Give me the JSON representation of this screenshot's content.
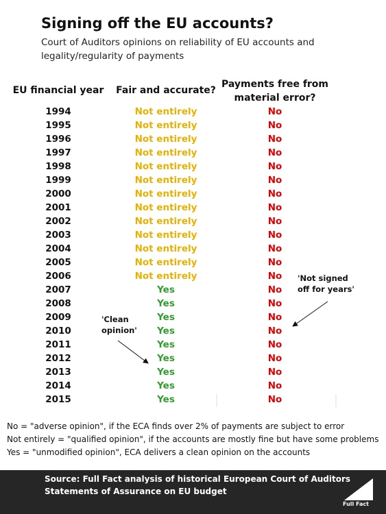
{
  "header": {
    "title": "Signing off the EU accounts?",
    "subtitle_lines": [
      "Court of Auditors opinions on reliability of EU accounts and",
      "legality/regularity of payments"
    ]
  },
  "table": {
    "columns": [
      "EU financial year",
      "Fair and accurate?",
      [
        "Payments free from",
        "material error?"
      ]
    ],
    "rows": [
      [
        "1994",
        "Not entirely",
        "No"
      ],
      [
        "1995",
        "Not entirely",
        "No"
      ],
      [
        "1996",
        "Not entirely",
        "No"
      ],
      [
        "1997",
        "Not entirely",
        "No"
      ],
      [
        "1998",
        "Not entirely",
        "No"
      ],
      [
        "1999",
        "Not entirely",
        "No"
      ],
      [
        "2000",
        "Not entirely",
        "No"
      ],
      [
        "2001",
        "Not entirely",
        "No"
      ],
      [
        "2002",
        "Not entirely",
        "No"
      ],
      [
        "2003",
        "Not entirely",
        "No"
      ],
      [
        "2004",
        "Not entirely",
        "No"
      ],
      [
        "2005",
        "Not entirely",
        "No"
      ],
      [
        "2006",
        "Not entirely",
        "No"
      ],
      [
        "2007",
        "Yes",
        "No"
      ],
      [
        "2008",
        "Yes",
        "No"
      ],
      [
        "2009",
        "Yes",
        "No"
      ],
      [
        "2010",
        "Yes",
        "No"
      ],
      [
        "2011",
        "Yes",
        "No"
      ],
      [
        "2012",
        "Yes",
        "No"
      ],
      [
        "2013",
        "Yes",
        "No"
      ],
      [
        "2014",
        "Yes",
        "No"
      ],
      [
        "2015",
        "Yes",
        "No"
      ]
    ],
    "value_colors": {
      "Not entirely": "#e8b000",
      "No": "#e00000",
      "Yes": "#2f9e2f"
    }
  },
  "annotations": [
    {
      "lines": [
        "'Not signed",
        "off for years'"
      ]
    },
    {
      "lines": [
        "'Clean",
        "opinion'"
      ]
    }
  ],
  "notes": [
    "No = \"adverse opinion\", if the ECA finds over 2% of payments are subject to error",
    "Not entirely = \"qualified opinion\", if the accounts are mostly fine but have some problems",
    "Yes = \"unmodified opinion\", ECA delivers a clean opinion on the accounts"
  ],
  "footer": {
    "source_label": "Source:",
    "source_lines": [
      " Full Fact analysis of historical European Court of Auditors",
      "Statements of Assurance on EU budget"
    ],
    "logo": "Full Fact"
  }
}
